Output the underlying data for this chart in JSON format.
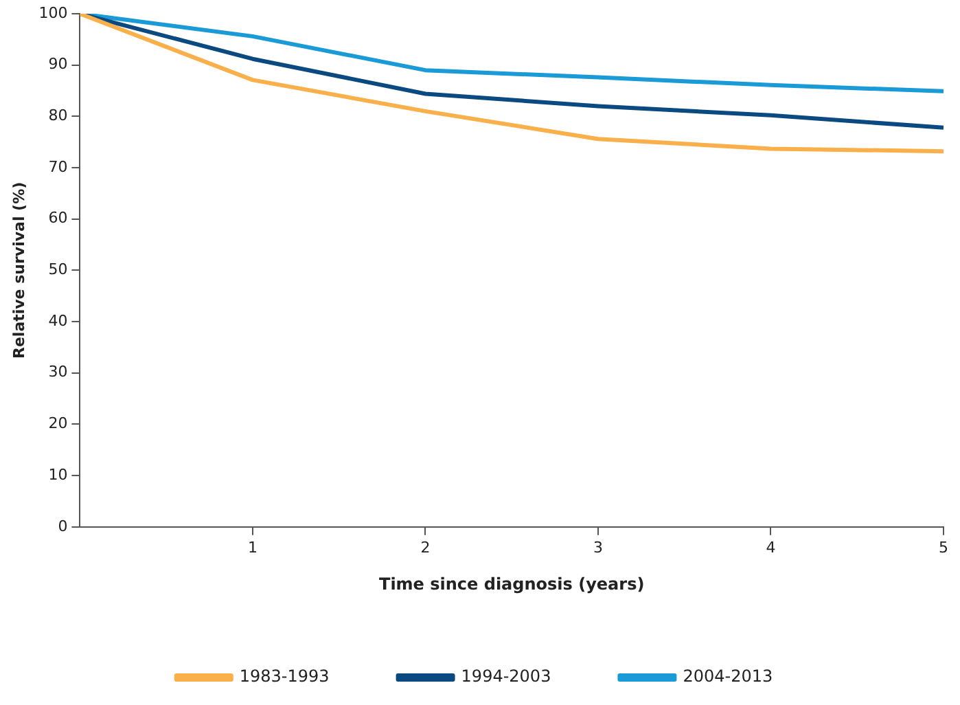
{
  "chart_data": {
    "type": "line",
    "xlabel": "Time since diagnosis (years)",
    "ylabel": "Relative survival (%)",
    "x": [
      0,
      1,
      2,
      3,
      4,
      5
    ],
    "series": [
      {
        "name": "1983-1993",
        "color": "#f9b04a",
        "values": [
          100,
          87.1,
          81,
          75.6,
          73.7,
          73.2
        ]
      },
      {
        "name": "1994-2003",
        "color": "#0b4a80",
        "values": [
          100,
          91.2,
          84.4,
          82,
          80.2,
          77.8
        ]
      },
      {
        "name": "2004-2013",
        "color": "#1a9ad6",
        "values": [
          100,
          95.6,
          89,
          87.6,
          86.1,
          84.9
        ]
      }
    ],
    "xlim": [
      0,
      5
    ],
    "xticks": [
      1,
      2,
      3,
      4,
      5
    ],
    "ylim": [
      0,
      100
    ],
    "yticks": [
      0,
      10,
      20,
      30,
      40,
      50,
      60,
      70,
      80,
      90,
      100
    ],
    "grid": false,
    "legend": "bottom",
    "marker": "none",
    "line_style": "solid"
  }
}
